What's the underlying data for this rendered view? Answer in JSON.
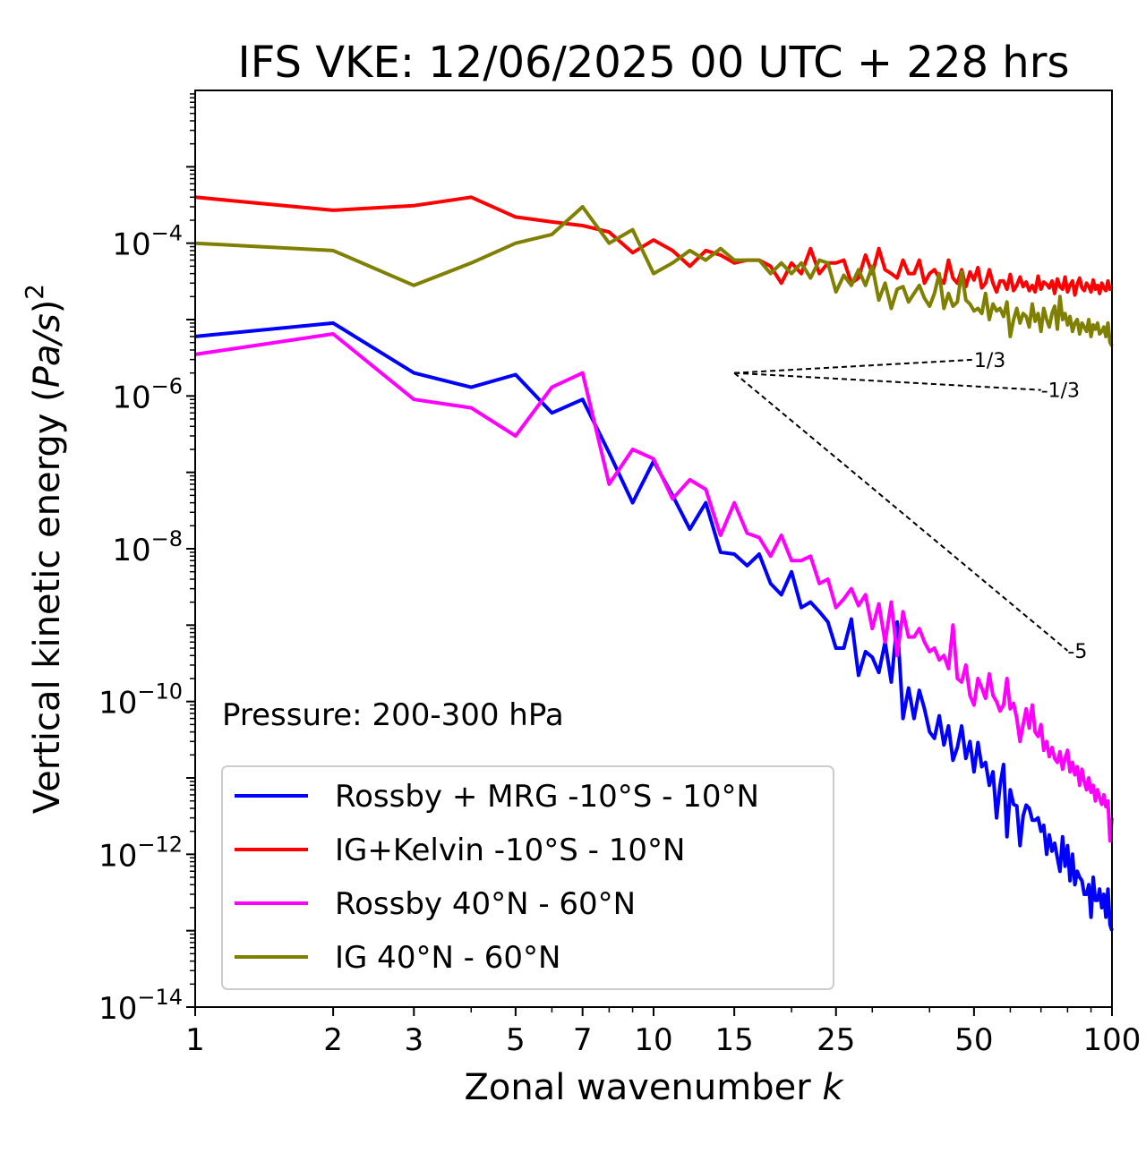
{
  "chart_data": {
    "type": "line",
    "title": "IFS VKE: 12/06/2025 00 UTC + 228 hrs",
    "xlabel": "Zonal wavenumber k",
    "ylabel": "Vertical kinetic energy (Pa/s)^2",
    "xscale": "log",
    "yscale": "log",
    "xlim": [
      1,
      100
    ],
    "ylim": [
      1e-14,
      0.01
    ],
    "xticks": [
      1,
      2,
      3,
      5,
      7,
      10,
      15,
      25,
      50,
      100
    ],
    "xtick_labels": [
      "1",
      "2",
      "3",
      "5",
      "7",
      "10",
      "15",
      "25",
      "50",
      "100"
    ],
    "yticks": [
      0.0001,
      1e-06,
      1e-08,
      1e-10,
      1e-12,
      1e-14
    ],
    "ytick_labels": [
      {
        "base": "10",
        "exp": "−4"
      },
      {
        "base": "10",
        "exp": "−6"
      },
      {
        "base": "10",
        "exp": "−8"
      },
      {
        "base": "10",
        "exp": "−10"
      },
      {
        "base": "10",
        "exp": "−12"
      },
      {
        "base": "10",
        "exp": "−14"
      }
    ],
    "annotation": "Pressure: 200-300 hPa",
    "legend_position": "lower-left",
    "grid": false,
    "slope_lines": [
      {
        "label": "1/3",
        "slope": 0.333,
        "from_k": 15,
        "to_k": 50,
        "y0": 2e-06
      },
      {
        "label": "-1/3",
        "slope": -0.333,
        "from_k": 15,
        "to_k": 70,
        "y0": 2e-06
      },
      {
        "label": "-5",
        "slope": -5,
        "from_k": 15,
        "to_k": 80,
        "y0": 2e-06
      }
    ],
    "series": [
      {
        "name": "Rossby + MRG -10°S - 10°N",
        "color": "#0000ff",
        "y": [
          6e-06,
          9e-06,
          2e-06,
          1.3e-06,
          1.9e-06,
          6e-07,
          9e-07,
          1.8e-07,
          4e-08,
          1.4e-07,
          5e-08,
          1.8e-08,
          4e-08,
          9e-09,
          8.5e-09,
          6e-09,
          8.5e-09,
          3.5e-09,
          2.5e-09,
          5e-09,
          1.7e-09,
          2e-09,
          1.5e-09,
          1.1e-09,
          5e-10,
          5e-10,
          1.2e-09,
          2.2e-10,
          4.5e-10,
          3.8e-10,
          2.4e-10,
          6e-10,
          1.8e-10,
          1.1e-09,
          6e-11,
          1.5e-10,
          6e-11,
          1.4e-10,
          8e-11,
          4e-11,
          3.3e-11,
          6.5e-11,
          2.7e-11,
          4.8e-11,
          1.7e-11,
          2.5e-11,
          4.8e-11,
          1.8e-11,
          3e-11,
          1.2e-11,
          2.9e-11,
          1.4e-11,
          1.6e-11,
          8e-12,
          1.2e-11,
          3e-12,
          8e-12,
          1.5e-11,
          1.7e-12,
          7e-12,
          4.5e-12,
          4.3e-12,
          1.3e-12,
          3.2e-12,
          4.4e-12,
          4e-12,
          2.8e-12,
          2.8e-12,
          3e-12,
          2e-12,
          2.4e-12,
          1e-12,
          1.8e-12,
          1.1e-12,
          1.4e-12,
          9e-13,
          6e-13,
          1.7e-12,
          7e-13,
          1.3e-12,
          4.5e-13,
          1e-12,
          4e-13,
          6e-13,
          5e-13,
          4.5e-13,
          3e-13,
          3e-13,
          4e-13,
          1.5e-13,
          5e-13,
          2.5e-13,
          2.5e-13,
          3.5e-13,
          2e-13,
          3e-13,
          1.5e-13,
          3.5e-13,
          1.2e-13,
          1e-13
        ]
      },
      {
        "name": "IG+Kelvin -10°S - 10°N",
        "color": "#ff0000",
        "y": [
          0.0004,
          0.00027,
          0.00031,
          0.0004,
          0.00022,
          0.00019,
          0.00017,
          0.00014,
          7.5e-05,
          0.00011,
          8e-05,
          5e-05,
          8e-05,
          7e-05,
          5.5e-05,
          6e-05,
          6e-05,
          5e-05,
          3e-05,
          5.5e-05,
          4e-05,
          8.5e-05,
          4e-05,
          5.5e-05,
          5.5e-05,
          6e-05,
          3e-05,
          3.5e-05,
          7e-05,
          4e-05,
          8.5e-05,
          4.5e-05,
          4e-05,
          3.5e-05,
          6e-05,
          4e-05,
          4e-05,
          6e-05,
          3e-05,
          4e-05,
          4.5e-05,
          3.5e-05,
          3e-05,
          6e-05,
          3.5e-05,
          3e-05,
          4.5e-05,
          2.7e-05,
          4.2e-05,
          3.3e-05,
          4.8e-05,
          2.6e-05,
          3e-05,
          4.5e-05,
          3e-05,
          2.3e-05,
          3.2e-05,
          3.2e-05,
          2.5e-05,
          3.9e-05,
          2.4e-05,
          2.8e-05,
          3.6e-05,
          2.7e-05,
          3.1e-05,
          2.4e-05,
          2.8e-05,
          2.3e-05,
          3.7e-05,
          2.5e-05,
          3.1e-05,
          2.9e-05,
          2.6e-05,
          3.2e-05,
          2.2e-05,
          3.4e-05,
          2.7e-05,
          2.5e-05,
          3.6e-05,
          2.3e-05,
          2.8e-05,
          3.2e-05,
          2.1e-05,
          2.9e-05,
          3.5e-05,
          2.6e-05,
          2.4e-05,
          3e-05,
          2.7e-05,
          2.3e-05,
          3.3e-05,
          2.5e-05,
          2.8e-05,
          2.2e-05,
          3e-05,
          2.6e-05,
          2.4e-05,
          3.2e-05,
          2.5e-05,
          2.7e-05
        ]
      },
      {
        "name": "Rossby 40°N - 60°N",
        "color": "#ff00ff",
        "y": [
          3.5e-06,
          6.5e-06,
          9e-07,
          7e-07,
          3e-07,
          1.3e-06,
          2e-06,
          7e-08,
          2e-07,
          1.5e-07,
          4.5e-08,
          8e-08,
          6e-08,
          1.5e-08,
          4e-08,
          1.6e-08,
          1.4e-08,
          8e-09,
          1.5e-08,
          7e-09,
          7e-09,
          8e-09,
          3.5e-09,
          4e-09,
          1.7e-09,
          2.2e-09,
          3e-09,
          1.8e-09,
          2.5e-09,
          9e-10,
          1.9e-09,
          6e-10,
          2e-09,
          4e-10,
          1.5e-09,
          7e-10,
          7e-10,
          9e-10,
          6e-10,
          4.5e-10,
          5e-10,
          3.5e-10,
          4e-10,
          2.7e-10,
          1e-09,
          2e-10,
          1.8e-10,
          3e-10,
          1.2e-10,
          9e-11,
          2e-10,
          1.5e-10,
          1.1e-10,
          2.3e-10,
          1.2e-10,
          1e-10,
          7.5e-11,
          9e-11,
          2e-10,
          8e-11,
          9.5e-11,
          6e-11,
          3e-11,
          5e-11,
          8e-11,
          4.5e-11,
          9e-11,
          4e-11,
          3.5e-11,
          5e-11,
          2.3e-11,
          3e-11,
          1.9e-11,
          2.5e-11,
          1.8e-11,
          1.6e-11,
          2.2e-11,
          1.3e-11,
          1.8e-11,
          2.3e-11,
          1.2e-11,
          1.6e-11,
          1.1e-11,
          1.4e-11,
          8e-12,
          1.3e-11,
          9e-12,
          7e-12,
          1e-11,
          6.5e-12,
          8e-12,
          5e-12,
          7e-12,
          5.5e-12,
          4.5e-12,
          6e-12,
          4.2e-12,
          5e-12,
          1.5e-12,
          3e-12
        ]
      },
      {
        "name": "IG 40°N - 60°N",
        "color": "#808000",
        "y": [
          0.0001,
          8e-05,
          2.8e-05,
          5.5e-05,
          0.0001,
          0.00013,
          0.0003,
          0.0001,
          0.00015,
          4e-05,
          5.5e-05,
          8e-05,
          6e-05,
          8.5e-05,
          6e-05,
          6e-05,
          6e-05,
          4e-05,
          5.5e-05,
          4e-05,
          5.5e-05,
          3.5e-05,
          6e-05,
          5.5e-05,
          2.3e-05,
          3.8e-05,
          2.8e-05,
          4.5e-05,
          2.8e-05,
          5e-05,
          1.8e-05,
          3e-05,
          1.4e-05,
          2.5e-05,
          2.7e-05,
          1.7e-05,
          2.2e-05,
          2.8e-05,
          1.9e-05,
          1.5e-05,
          2.2e-05,
          4e-05,
          1.4e-05,
          2.2e-05,
          1.5e-05,
          1.7e-05,
          4.2e-05,
          1.8e-05,
          1.6e-05,
          1.3e-05,
          1.4e-05,
          1.2e-05,
          2.2e-05,
          1e-05,
          1.6e-05,
          1.3e-05,
          1.4e-05,
          1.1e-05,
          1.7e-05,
          6e-06,
          1e-05,
          1.4e-05,
          9e-06,
          1.2e-05,
          1.1e-05,
          8e-06,
          1.6e-05,
          9.5e-06,
          1.2e-05,
          7e-06,
          1.4e-05,
          1e-05,
          8e-06,
          1.2e-05,
          1.5e-05,
          7.5e-06,
          2e-05,
          1e-05,
          1.2e-05,
          8.5e-06,
          1.1e-05,
          7e-06,
          9e-06,
          1e-05,
          6.5e-06,
          9e-06,
          8e-06,
          7e-06,
          1e-05,
          6e-06,
          8.5e-06,
          7.5e-06,
          9e-06,
          6.5e-06,
          7e-06,
          8e-06,
          6e-06,
          9e-06,
          5e-06,
          4.5e-06
        ]
      }
    ]
  }
}
